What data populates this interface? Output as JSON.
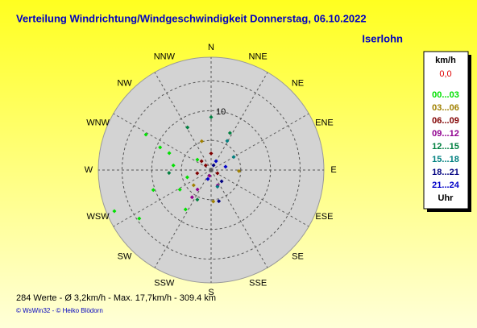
{
  "chart_data": {
    "type": "polar_scatter",
    "title": "Verteilung Windrichtung/Windgeschwindigkeit  Donnerstag, 06.10.2022",
    "subtitle": "Iserlohn",
    "directions": [
      "N",
      "NNE",
      "NE",
      "ENE",
      "E",
      "ESE",
      "SE",
      "SSE",
      "S",
      "SSW",
      "SW",
      "WSW",
      "W",
      "WNW",
      "NW",
      "NNW"
    ],
    "rlim": [
      0,
      19
    ],
    "rgrid": [
      5,
      10,
      15
    ],
    "rticks": [
      10
    ],
    "legend_title": "km/h",
    "legend_calm": "0,0",
    "legend_footer": "Uhr",
    "series": [
      {
        "name": "00...03",
        "color": "#00e000",
        "direction": [
          247,
          298.5,
          236,
          251,
          294,
          213,
          277,
          253,
          292,
          307,
          238
        ],
        "speed": [
          17.7,
          12.5,
          14.6,
          10.3,
          9.4,
          7.9,
          6.4,
          4.2,
          7.6,
          2.9,
          6.2
        ]
      },
      {
        "name": "03...06",
        "color": "#a08000",
        "direction": [
          92,
          229,
          176,
          342
        ],
        "speed": [
          4.7,
          3.9,
          5.3,
          5.1
        ]
      },
      {
        "name": "06...09",
        "color": "#800000",
        "direction": [
          313,
          311,
          117,
          257,
          0
        ],
        "speed": [
          2.2,
          1.2,
          1.2,
          2.4,
          2.8
        ]
      },
      {
        "name": "09...12",
        "color": "#900090",
        "direction": [
          215,
          215,
          196,
          157
        ],
        "speed": [
          4.0,
          5.6,
          1.0,
          2.8
        ]
      },
      {
        "name": "12...15",
        "color": "#008040",
        "direction": [
          331,
          0,
          27,
          266,
          205
        ],
        "speed": [
          8.2,
          8.9,
          7.0,
          7.1,
          5.5
        ]
      },
      {
        "name": "15...18",
        "color": "#008080",
        "direction": [
          29,
          159,
          60
        ],
        "speed": [
          5.6,
          3.0,
          4.4
        ]
      },
      {
        "name": "18...21",
        "color": "#000080",
        "direction": [
          27,
          137,
          166
        ],
        "speed": [
          0.9,
          2.6,
          5.4
        ]
      },
      {
        "name": "21...24",
        "color": "#0000c8",
        "direction": [
          29,
          77,
          200
        ],
        "speed": [
          1.7,
          2.5,
          1.6
        ]
      }
    ],
    "footer": "284 Werte   -   Ø 3,2km/h   -   Max. 17,7km/h   -   309.4 km",
    "credit": "© WsWin32  -  © Heiko Blödorn"
  }
}
